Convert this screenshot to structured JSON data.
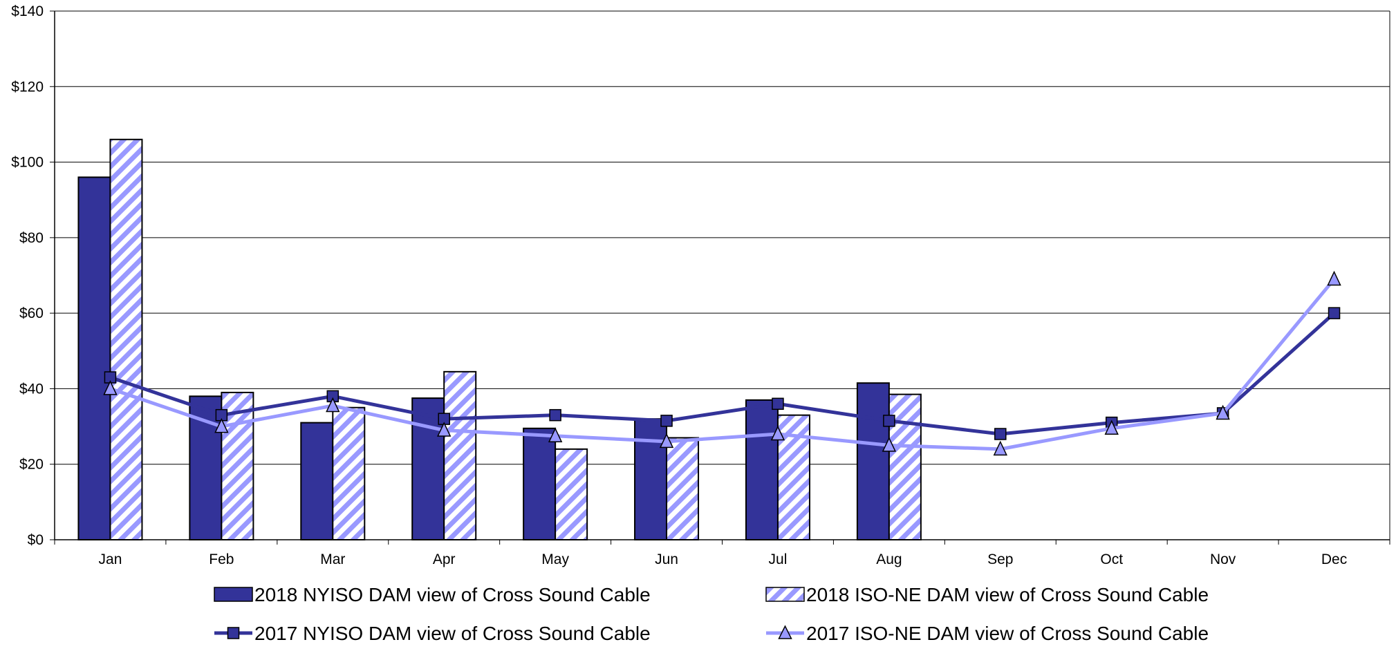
{
  "chart_data": {
    "type": "bar",
    "categories": [
      "Jan",
      "Feb",
      "Mar",
      "Apr",
      "May",
      "Jun",
      "Jul",
      "Aug",
      "Sep",
      "Oct",
      "Nov",
      "Dec"
    ],
    "ylim": [
      0,
      140
    ],
    "yticks": [
      0,
      20,
      40,
      60,
      80,
      100,
      120,
      140
    ],
    "ytick_labels": [
      "$0",
      "$20",
      "$40",
      "$60",
      "$80",
      "$100",
      "$120",
      "$140"
    ],
    "grid": true,
    "legend_position": "bottom",
    "bar_series": [
      {
        "name": "2018 NYISO DAM view of Cross Sound Cable",
        "style": "solid",
        "color": "#333399",
        "values": [
          96,
          38,
          31,
          37.5,
          29.5,
          32,
          37,
          41.5,
          null,
          null,
          null,
          null
        ]
      },
      {
        "name": "2018 ISO-NE DAM view of Cross Sound Cable",
        "style": "hatched",
        "color": "#9999ff",
        "values": [
          106,
          39,
          35,
          44.5,
          24,
          27,
          33,
          38.5,
          null,
          null,
          null,
          null
        ]
      }
    ],
    "line_series": [
      {
        "name": "2017 NYISO DAM view of Cross Sound Cable",
        "marker": "square",
        "color": "#333399",
        "values": [
          43,
          33,
          38,
          32,
          33,
          31.5,
          36,
          31.5,
          28,
          31,
          33.5,
          60
        ]
      },
      {
        "name": "2017 ISO-NE DAM view of Cross Sound Cable",
        "marker": "triangle",
        "color": "#9999ff",
        "values": [
          40,
          30,
          35.5,
          29,
          27.5,
          26,
          28,
          25,
          24,
          29.5,
          33.5,
          69
        ]
      }
    ]
  }
}
